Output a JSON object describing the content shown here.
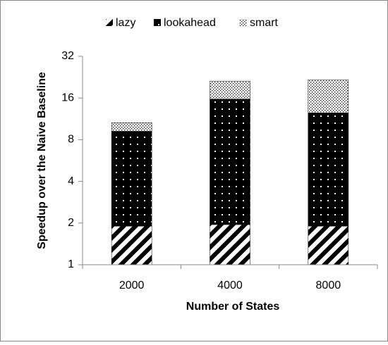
{
  "chart_data": {
    "type": "stacked_bar",
    "x_label": "Number of States",
    "y_label": "Speedup over the Naive Baseline",
    "categories": [
      "2000",
      "4000",
      "8000"
    ],
    "series": [
      {
        "name": "lazy",
        "color": "#000000",
        "pattern": "diagonal",
        "values": [
          1.9,
          1.95,
          1.9
        ]
      },
      {
        "name": "lookahead",
        "color": "#000000",
        "pattern": "dots",
        "values": [
          7.3,
          13.75,
          10.6
        ]
      },
      {
        "name": "smart",
        "color": "#000000",
        "pattern": "dotted",
        "values": [
          1.4,
          5.5,
          9.2
        ]
      }
    ],
    "ylim": [
      1,
      32
    ],
    "yticks": [
      1,
      2,
      4,
      8,
      16,
      32
    ],
    "y_scale": "log2",
    "legend": "top",
    "grid": false
  }
}
